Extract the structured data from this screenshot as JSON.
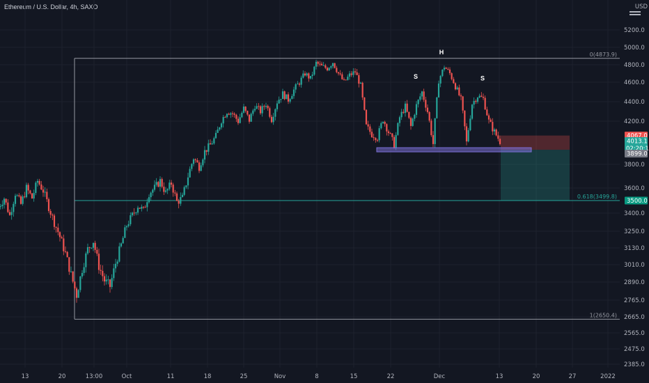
{
  "header": {
    "title": "Ethereum / U.S. Dollar, 4h, SAXO"
  },
  "price_axis": {
    "currency": "USD",
    "labels": [
      "5200.0",
      "5000.0",
      "4800.0",
      "4600.0",
      "4400.0",
      "4200.0",
      "3800.0",
      "3600.0",
      "3400.0",
      "3250.0",
      "3130.0",
      "3010.0",
      "2890.0",
      "2765.0",
      "2665.0",
      "2565.0",
      "2475.0",
      "2385.0"
    ]
  },
  "time_axis": {
    "labels": [
      "13",
      "20",
      "13:00",
      "Oct",
      "11",
      "18",
      "25",
      "Nov",
      "8",
      "15",
      "22",
      "Dec",
      "13",
      "20",
      "27",
      "2022"
    ]
  },
  "price_tags": [
    {
      "text": "4067.0",
      "color": "#ef5350",
      "value": 4067
    },
    {
      "text": "4013.1",
      "time": "02:20:15",
      "color": "#26a69a",
      "value": 4013.1
    },
    {
      "text": "3899.0",
      "color": "#787b86",
      "value": 3899
    },
    {
      "text": "3500.0",
      "color": "#089981",
      "value": 3500
    }
  ],
  "fib_levels": [
    {
      "label": "0(4873.9)",
      "value": 4873.9,
      "color": "#9598a1"
    },
    {
      "label": "0.618(3499.8)",
      "value": 3499.8,
      "color": "#26a69a"
    },
    {
      "label": "1(2650.4)",
      "value": 2650.4,
      "color": "#9598a1"
    }
  ],
  "annotations": [
    {
      "text": "S",
      "value": 4640,
      "t": 0.0
    },
    {
      "text": "H",
      "value": 4920,
      "t": 0.0
    },
    {
      "text": "S",
      "value": 4620,
      "t": 0.0
    }
  ],
  "neckline": {
    "value": 3935,
    "color": "#7b6fd6"
  },
  "position": {
    "entry": 3935,
    "stop": 4067,
    "target": 3500
  },
  "chart_data": {
    "type": "candlestick",
    "title": "Ethereum / U.S. Dollar, 4h, SAXO",
    "series": [
      {
        "name": "",
        "close": [
          3450,
          3520,
          3380,
          3560,
          3470,
          3600,
          3520,
          3660,
          3580,
          3450,
          3320,
          3210,
          3090,
          2940,
          2800,
          2980,
          3120,
          3180,
          3000,
          2900,
          2860,
          3020,
          3150,
          3300,
          3380,
          3460,
          3420,
          3560,
          3600,
          3660,
          3560,
          3640,
          3490,
          3520,
          3700,
          3860,
          3780,
          3920,
          3980,
          4060,
          4210,
          4300,
          4280,
          4200,
          4330,
          4210,
          4360,
          4300,
          4380,
          4220,
          4400,
          4480,
          4420,
          4520,
          4600,
          4700,
          4640,
          4820,
          4780,
          4760,
          4830,
          4700,
          4600,
          4680,
          4720,
          4560,
          4150,
          4080,
          4050,
          4220,
          4100,
          3980,
          4240,
          4350,
          4150,
          4360,
          4500,
          4300,
          3990,
          4620,
          4780,
          4700,
          4560,
          4420,
          4000,
          4380,
          4460,
          4430,
          4200,
          4100,
          4013
        ],
        "x_start": "2021-09-10",
        "x_step_days": 1
      }
    ],
    "xlabel": "",
    "ylabel": "",
    "ylim": [
      2385,
      5200
    ]
  }
}
